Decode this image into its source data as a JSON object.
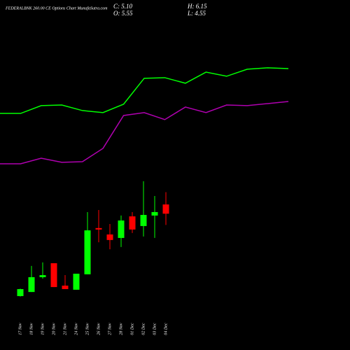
{
  "chart_data": [
    {
      "type": "candlestick",
      "title": "FEDERALBNK 260.00 CE Options Chart MunafaSutra.com",
      "header": {
        "close": "C: 5.10",
        "open": "O: 5.55",
        "high": "H: 6.15",
        "low": "L: 4.55"
      },
      "categories": [
        "17 Nov",
        "18 Nov",
        "19 Nov",
        "20 Nov",
        "21 Nov",
        "24 Nov",
        "25 Nov",
        "26 Nov",
        "27 Nov",
        "28 Nov",
        "01 Dec",
        "02 Dec",
        "03 Dec",
        "04 Dec"
      ],
      "open": [
        1.09,
        1.29,
        2.01,
        2.69,
        1.6,
        1.4,
        2.15,
        4.4,
        4.09,
        3.92,
        4.97,
        4.5,
        5.01,
        5.55
      ],
      "high": [
        1.45,
        2.56,
        2.73,
        2.69,
        2.11,
        2.18,
        5.18,
        5.28,
        4.6,
        5.01,
        5.18,
        6.68,
        5.96,
        6.15
      ],
      "low": [
        1.07,
        1.29,
        1.94,
        1.53,
        1.43,
        1.4,
        2.15,
        3.71,
        3.37,
        3.48,
        4.16,
        3.99,
        3.92,
        4.55
      ],
      "close": [
        1.43,
        2.01,
        2.11,
        1.53,
        1.43,
        2.18,
        4.29,
        4.33,
        3.82,
        4.77,
        4.33,
        5.04,
        5.18,
        5.1
      ],
      "up_color": "#00ff00",
      "down_color": "#ff0000",
      "ylim": [
        0,
        15.5
      ]
    },
    {
      "type": "line",
      "series": [
        {
          "color": "#00ff00",
          "values": [
            9.98,
            9.98,
            10.36,
            10.39,
            10.12,
            10.02,
            10.43,
            11.69,
            11.72,
            11.45,
            11.99,
            11.79,
            12.13,
            12.2,
            12.16
          ]
        },
        {
          "color": "#b000b0",
          "values": [
            7.53,
            7.53,
            7.8,
            7.6,
            7.63,
            8.28,
            9.88,
            10.02,
            9.68,
            10.29,
            10.02,
            10.39,
            10.36,
            10.46,
            10.56
          ]
        }
      ],
      "ylim": [
        0,
        15.5
      ]
    }
  ]
}
